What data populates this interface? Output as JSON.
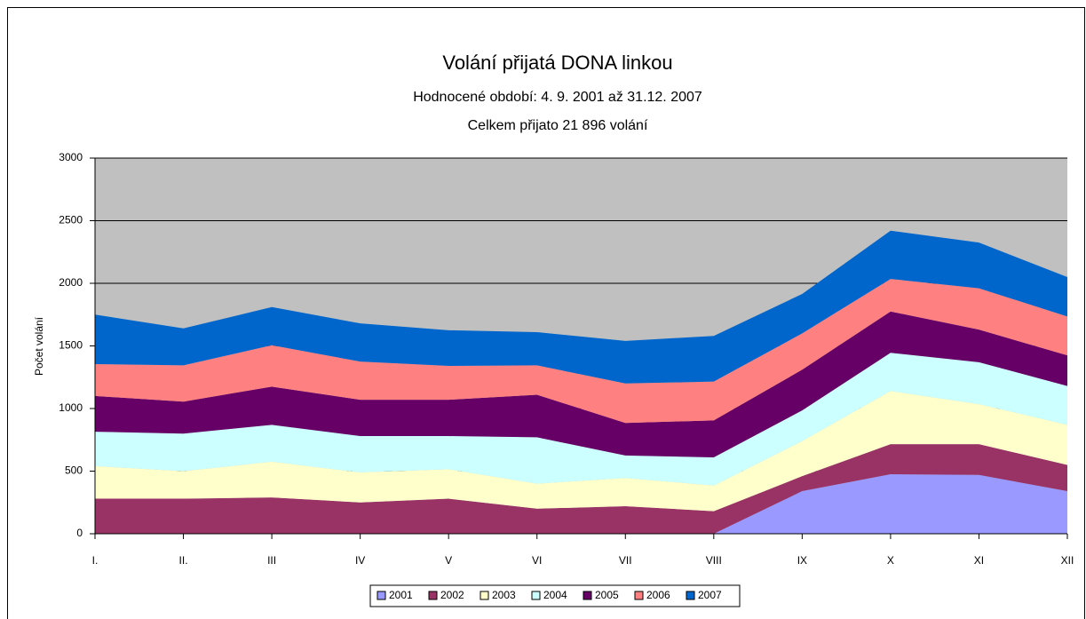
{
  "chart_data": {
    "type": "stacked_area",
    "title": "Volání přijatá DONA linkou",
    "subtitle": [
      "Hodnocené období: 4. 9. 2001 až 31.12. 2007",
      "Celkem přijato 21 896 volání"
    ],
    "y_label": "Počet volání",
    "categories": [
      "I.",
      "II.",
      "III",
      "IV",
      "V",
      "VI",
      "VII",
      "VIII",
      "IX",
      "X",
      "XI",
      "XII"
    ],
    "series": [
      {
        "name": "2001",
        "color": "#9999ff",
        "values": [
          0,
          0,
          0,
          0,
          0,
          0,
          0,
          0,
          340,
          475,
          470,
          340
        ]
      },
      {
        "name": "2002",
        "color": "#993366",
        "values": [
          280,
          280,
          290,
          250,
          280,
          200,
          220,
          180,
          120,
          240,
          245,
          210
        ]
      },
      {
        "name": "2003",
        "color": "#ffffcc",
        "values": [
          260,
          220,
          285,
          240,
          235,
          200,
          225,
          205,
          280,
          425,
          320,
          320
        ]
      },
      {
        "name": "2004",
        "color": "#ccffff",
        "values": [
          275,
          300,
          295,
          290,
          265,
          370,
          180,
          225,
          245,
          305,
          335,
          310
        ]
      },
      {
        "name": "2005",
        "color": "#660066",
        "values": [
          285,
          255,
          305,
          290,
          290,
          340,
          260,
          295,
          325,
          330,
          260,
          245
        ]
      },
      {
        "name": "2006",
        "color": "#ff8080",
        "values": [
          255,
          290,
          330,
          305,
          270,
          235,
          315,
          310,
          290,
          260,
          330,
          310
        ]
      },
      {
        "name": "2007",
        "color": "#0066cc",
        "values": [
          395,
          295,
          305,
          305,
          285,
          265,
          340,
          365,
          315,
          385,
          365,
          315
        ]
      }
    ],
    "ylim": [
      0,
      3000
    ],
    "yticks": [
      0,
      500,
      1000,
      1500,
      2000,
      2500,
      3000
    ],
    "grid": true,
    "plot_background": "#c0c0c0",
    "legend": "bottom"
  }
}
